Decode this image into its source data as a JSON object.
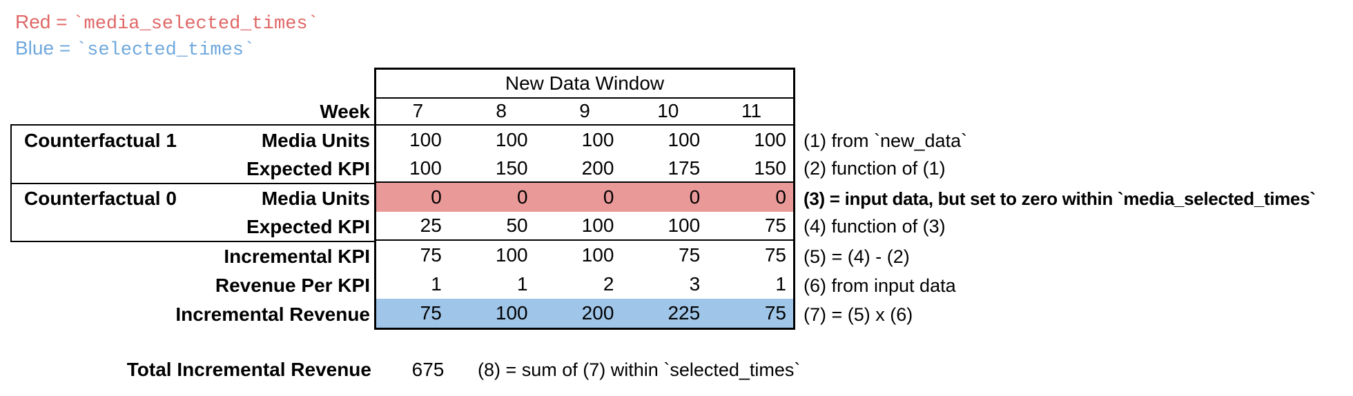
{
  "legend": {
    "red_label": "Red",
    "red_eq": " = ",
    "red_code": "`media_selected_times`",
    "blue_label": "Blue",
    "blue_eq": " = ",
    "blue_code": "`selected_times`"
  },
  "colors": {
    "red_text": "#E06666",
    "blue_text": "#6FA8DC",
    "red_fill": "#EA9999",
    "blue_fill": "#9FC5E8",
    "border": "#000000"
  },
  "table": {
    "header": "New Data Window",
    "week_label": "Week",
    "weeks": [
      "7",
      "8",
      "9",
      "10",
      "11"
    ],
    "group1_label": "Counterfactual 1",
    "group2_label": "Counterfactual 0",
    "rows": [
      {
        "label": "Media Units",
        "values": [
          "100",
          "100",
          "100",
          "100",
          "100"
        ],
        "annotation": "(1) from `new_data`"
      },
      {
        "label": "Expected KPI",
        "values": [
          "100",
          "150",
          "200",
          "175",
          "150"
        ],
        "annotation": "(2) function of (1)"
      },
      {
        "label": "Media Units",
        "values": [
          "0",
          "0",
          "0",
          "0",
          "0"
        ],
        "annotation": "(3) = input data, but set to zero within `media_selected_times`",
        "highlight": "red"
      },
      {
        "label": "Expected KPI",
        "values": [
          "25",
          "50",
          "100",
          "100",
          "75"
        ],
        "annotation": "(4) function of (3)"
      },
      {
        "label": "Incremental KPI",
        "values": [
          "75",
          "100",
          "100",
          "75",
          "75"
        ],
        "annotation": "(5) = (4) - (2)"
      },
      {
        "label": "Revenue Per KPI",
        "values": [
          "1",
          "1",
          "2",
          "3",
          "1"
        ],
        "annotation": "(6) from input data"
      },
      {
        "label": "Incremental Revenue",
        "values": [
          "75",
          "100",
          "200",
          "225",
          "75"
        ],
        "annotation": "(7) = (5) x (6)",
        "highlight": "blue"
      }
    ]
  },
  "total": {
    "label": "Total Incremental Revenue",
    "value": "675",
    "annotation": "(8) = sum of (7) within `selected_times`"
  }
}
